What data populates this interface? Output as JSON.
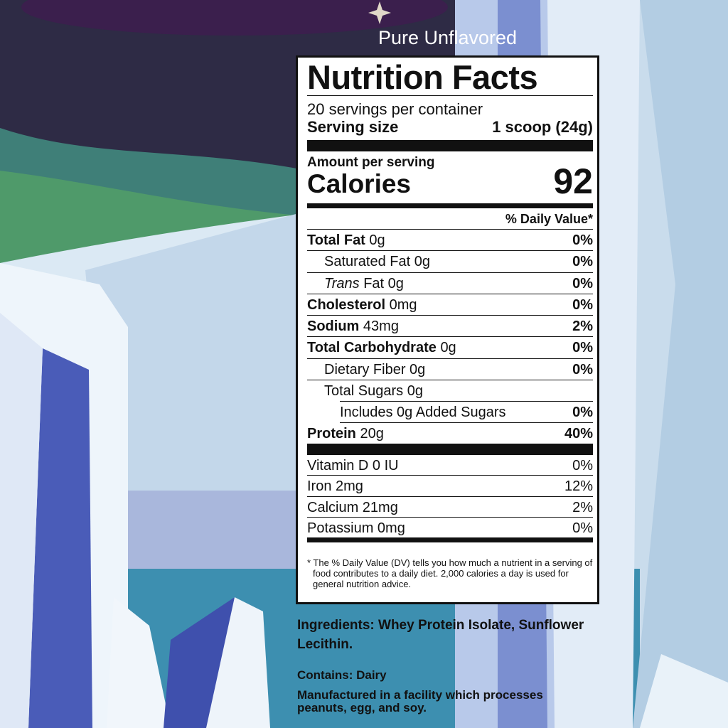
{
  "flavor": "Pure Unflavored",
  "label": {
    "title": "Nutrition Facts",
    "servings_per_container": "20 servings per container",
    "serving_size_label": "Serving size",
    "serving_size_value": "1 scoop (24g)",
    "amount_per_serving": "Amount per serving",
    "calories_label": "Calories",
    "calories_value": "92",
    "daily_value_header": "% Daily Value*",
    "nutrients": [
      {
        "name": "Total Fat",
        "amount": "0g",
        "dv": "0%"
      },
      {
        "name": "Saturated Fat",
        "amount": "0g",
        "dv": "0%"
      },
      {
        "name": "Trans",
        "name_rest": "Fat",
        "amount": "0g",
        "dv": "0%"
      },
      {
        "name": "Cholesterol",
        "amount": "0mg",
        "dv": "0%"
      },
      {
        "name": "Sodium",
        "amount": "43mg",
        "dv": "2%"
      },
      {
        "name": "Total Carbohydrate",
        "amount": "0g",
        "dv": "0%"
      },
      {
        "name": "Dietary Fiber",
        "amount": "0g",
        "dv": "0%"
      },
      {
        "name": "Total Sugars",
        "amount": "0g",
        "dv": ""
      },
      {
        "name": "Includes 0g Added Sugars",
        "amount": "",
        "dv": "0%"
      },
      {
        "name": "Protein",
        "amount": "20g",
        "dv": "40%"
      }
    ],
    "vitamins": [
      {
        "name": "Vitamin D 0 IU",
        "dv": "0%"
      },
      {
        "name": "Iron 2mg",
        "dv": "12%"
      },
      {
        "name": "Calcium 21mg",
        "dv": "2%"
      },
      {
        "name": "Potassium 0mg",
        "dv": "0%"
      }
    ],
    "footnote": "* The % Daily Value (DV) tells you how much a nutrient in a serving of food contributes to a daily diet. 2,000 calories a day is used for general nutrition advice."
  },
  "ingredients": "Ingredients: Whey Protein Isolate, Sunflower Lecithin.",
  "contains": "Contains: Dairy",
  "facility": "Manufactured in a facility which processes peanuts, egg, and soy.",
  "colors": {
    "sky": "#3a2a4a",
    "aurora": "#4f9a6a",
    "ice": "#e8f2fa",
    "ice_shadow": "#4a5cb8",
    "water": "#3d8fb0"
  }
}
